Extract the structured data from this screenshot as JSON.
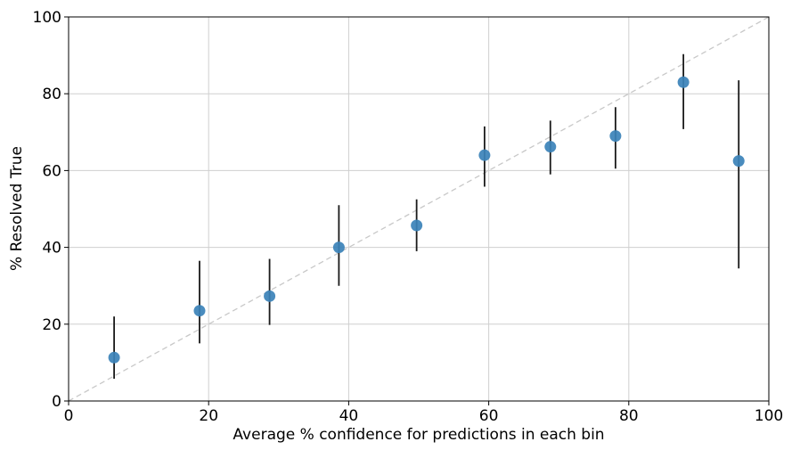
{
  "chart_data": {
    "type": "scatter",
    "title": "",
    "xlabel": "Average % confidence for predictions in each bin",
    "ylabel": "% Resolved True",
    "xlim": [
      0,
      100
    ],
    "ylim": [
      0,
      100
    ],
    "x_ticks": [
      "0",
      "20",
      "40",
      "60",
      "80",
      "100"
    ],
    "y_ticks": [
      "0",
      "20",
      "40",
      "60",
      "80",
      "100"
    ],
    "grid": true,
    "legend": "none",
    "reference_line": {
      "from": [
        0,
        0
      ],
      "to": [
        100,
        100
      ],
      "style": "dashed",
      "color": "#c8c8c8"
    },
    "point_color": "#3b82b8",
    "errorbar_color": "#1a1a1a",
    "points": [
      {
        "x": 6.5,
        "y": 11.3,
        "err_low": 5.8,
        "err_high": 22.0
      },
      {
        "x": 18.7,
        "y": 23.5,
        "err_low": 15.0,
        "err_high": 36.5
      },
      {
        "x": 28.7,
        "y": 27.3,
        "err_low": 19.8,
        "err_high": 37.0
      },
      {
        "x": 38.6,
        "y": 40.0,
        "err_low": 30.0,
        "err_high": 51.0
      },
      {
        "x": 49.7,
        "y": 45.7,
        "err_low": 39.0,
        "err_high": 52.5
      },
      {
        "x": 59.4,
        "y": 64.0,
        "err_low": 55.8,
        "err_high": 71.5
      },
      {
        "x": 68.8,
        "y": 66.2,
        "err_low": 59.0,
        "err_high": 73.0
      },
      {
        "x": 78.1,
        "y": 69.0,
        "err_low": 60.5,
        "err_high": 76.5
      },
      {
        "x": 87.8,
        "y": 83.0,
        "err_low": 70.8,
        "err_high": 90.3
      },
      {
        "x": 95.7,
        "y": 62.5,
        "err_low": 34.5,
        "err_high": 83.5
      }
    ]
  }
}
